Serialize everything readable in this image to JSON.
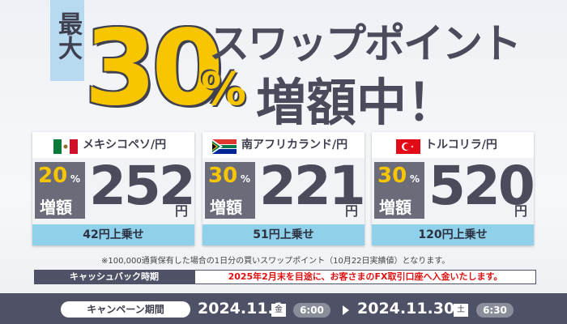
{
  "header": {
    "tag": "最大",
    "rate": "30",
    "rate_unit": "%",
    "title": "スワップポイント",
    "subtitle": "増額中！"
  },
  "cards": [
    {
      "pair": "メキシコペソ/円",
      "rate": "20",
      "rate_unit": "%",
      "rate_label": "増額",
      "amount": "252",
      "amount_unit": "円",
      "bonus": "42円上乗せ"
    },
    {
      "pair": "南アフリカランド/円",
      "rate": "30",
      "rate_unit": "%",
      "rate_label": "増額",
      "amount": "221",
      "amount_unit": "円",
      "bonus": "51円上乗せ"
    },
    {
      "pair": "トルコリラ/円",
      "rate": "30",
      "rate_unit": "%",
      "rate_label": "増額",
      "amount": "520",
      "amount_unit": "円",
      "bonus": "120円上乗せ"
    }
  ],
  "note": "※100,000通貨保有した場合の1日分の買いスワップポイント（10月22日実績値）となります。",
  "cashback": {
    "label": "キャッシュバック時期",
    "highlight": "2025年2月末",
    "text": "を目途に、お客さまのFX取引口座へ入金いたします。"
  },
  "period": {
    "label": "キャンペーン期間",
    "start_date": "2024.11.1",
    "start_day": "金",
    "start_time": "6:00",
    "end_date": "2024.11.30",
    "end_day": "土",
    "end_time": "6:30"
  }
}
